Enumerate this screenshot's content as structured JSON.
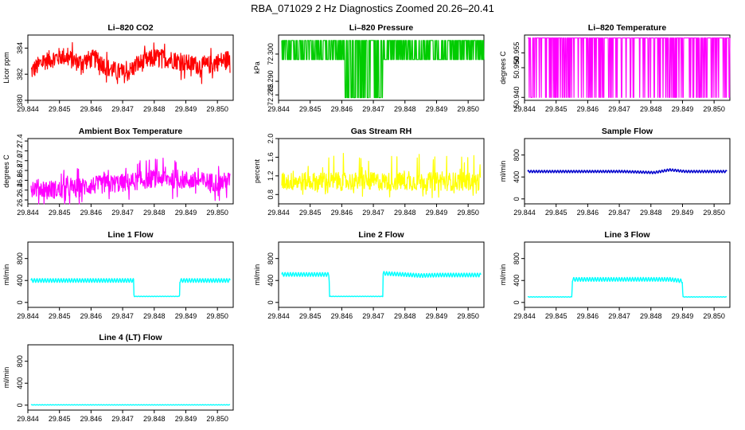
{
  "figure_title": "RBA_071029  2 Hz Diagnostics Zoomed 20.26–20.41",
  "x_ticks": [
    "29.844",
    "29.845",
    "29.846",
    "29.847",
    "29.848",
    "29.849",
    "29.850"
  ],
  "chart_data": [
    {
      "type": "line",
      "title": "Li–820 CO2",
      "ylabel": "Licor ppm",
      "color": "#ff0000",
      "xlim": [
        29.844,
        29.8505
      ],
      "ylim": [
        380,
        385
      ],
      "yticks": [
        "380",
        "382",
        "384"
      ],
      "ytick_values": [
        380,
        382,
        384
      ],
      "series": [
        {
          "name": "CO2",
          "x": [
            29.8441,
            29.8445,
            29.8451,
            29.8456,
            29.8461,
            29.8466,
            29.8471,
            29.8475,
            29.8481,
            29.8486,
            29.8491,
            29.8496,
            29.8501,
            29.8504
          ],
          "y": [
            382.2,
            383.0,
            383.4,
            382.9,
            383.2,
            382.4,
            382.0,
            382.8,
            383.3,
            383.1,
            382.8,
            382.6,
            383.0,
            383.2
          ]
        }
      ]
    },
    {
      "type": "line",
      "title": "Li–820 Pressure",
      "ylabel": "kPa",
      "color": "#00cc00",
      "xlim": [
        29.844,
        29.8505
      ],
      "ylim": [
        72.283,
        72.307
      ],
      "yticks": [
        "72.285",
        "72.290",
        "72.300"
      ],
      "ytick_values": [
        72.285,
        72.29,
        72.3
      ],
      "series": [
        {
          "name": "Pressure",
          "x": [
            29.8441,
            29.8461,
            29.8466,
            29.8473,
            29.8501,
            29.8505
          ],
          "y": [
            72.298,
            72.298,
            72.292,
            72.292,
            72.298,
            72.29
          ]
        }
      ]
    },
    {
      "type": "line",
      "title": "Li–820 Temperature",
      "ylabel": "degrees C",
      "color": "#ff00ff",
      "xlim": [
        29.844,
        29.8505
      ],
      "ylim": [
        50.939,
        50.961
      ],
      "yticks": [
        "50.940",
        "50.950",
        "50.955"
      ],
      "ytick_values": [
        50.94,
        50.95,
        50.955
      ],
      "series": [
        {
          "name": "Temperature",
          "x": [
            29.8441,
            29.8505
          ],
          "y": [
            50.96,
            50.96
          ]
        }
      ]
    },
    {
      "type": "line",
      "title": "Ambient Box Temperature",
      "ylabel": "degrees C",
      "color": "#ff00ff",
      "xlim": [
        29.844,
        29.8505
      ],
      "ylim": [
        26.12,
        27.45
      ],
      "yticks": [
        "26.2",
        "26.4",
        "26.6",
        "26.8",
        "27.0",
        "27.2",
        "27.4"
      ],
      "ytick_values": [
        26.2,
        26.4,
        26.6,
        26.8,
        27.0,
        27.2,
        27.4
      ],
      "series": [
        {
          "name": "Box Temp",
          "x": [
            29.8441,
            29.8451,
            29.8461,
            29.8471,
            29.8481,
            29.8491,
            29.8501,
            29.8504
          ],
          "y": [
            26.45,
            26.4,
            26.5,
            26.55,
            26.65,
            26.6,
            26.55,
            26.6
          ]
        }
      ]
    },
    {
      "type": "line",
      "title": "Gas Stream RH",
      "ylabel": "percent",
      "color": "#ffff00",
      "xlim": [
        29.844,
        29.8505
      ],
      "ylim": [
        0.6,
        2.0
      ],
      "yticks": [
        "0.8",
        "1.2",
        "1.6",
        "2.0"
      ],
      "ytick_values": [
        0.8,
        1.2,
        1.6,
        2.0
      ],
      "series": [
        {
          "name": "RH",
          "x": [
            29.8441,
            29.8461,
            29.8481,
            29.8504
          ],
          "y": [
            1.0,
            1.0,
            1.0,
            1.0
          ]
        }
      ]
    },
    {
      "type": "line",
      "title": "Sample Flow",
      "ylabel": "ml/min",
      "color": "#0000cc",
      "xlim": [
        29.844,
        29.8505
      ],
      "ylim": [
        -90,
        1100
      ],
      "yticks": [
        "0",
        "400",
        "800"
      ],
      "ytick_values": [
        0,
        400,
        800
      ],
      "series": [
        {
          "name": "Sample Flow",
          "x": [
            29.8441,
            29.8471,
            29.8481,
            29.8486,
            29.8491,
            29.8504
          ],
          "y": [
            500,
            500,
            480,
            530,
            500,
            500
          ]
        }
      ]
    },
    {
      "type": "line",
      "title": "Line 1 Flow",
      "ylabel": "ml/min",
      "color": "#00ffff",
      "xlim": [
        29.844,
        29.8505
      ],
      "ylim": [
        -90,
        1100
      ],
      "yticks": [
        "0",
        "400",
        "800"
      ],
      "ytick_values": [
        0,
        400,
        800
      ],
      "series": [
        {
          "name": "Line 1",
          "x": [
            29.8441,
            29.84735,
            29.84736,
            29.8488,
            29.84881,
            29.8504
          ],
          "y": [
            400,
            400,
            110,
            110,
            400,
            400
          ]
        }
      ]
    },
    {
      "type": "line",
      "title": "Line 2 Flow",
      "ylabel": "ml/min",
      "color": "#00ffff",
      "xlim": [
        29.844,
        29.8505
      ],
      "ylim": [
        -90,
        1100
      ],
      "yticks": [
        "0",
        "400",
        "800"
      ],
      "ytick_values": [
        0,
        400,
        800
      ],
      "series": [
        {
          "name": "Line 2",
          "x": [
            29.8441,
            29.8456,
            29.84561,
            29.8473,
            29.84731,
            29.8485,
            29.8491,
            29.8504
          ],
          "y": [
            510,
            510,
            110,
            110,
            530,
            490,
            500,
            500
          ]
        }
      ]
    },
    {
      "type": "line",
      "title": "Line 3 Flow",
      "ylabel": "ml/min",
      "color": "#00ffff",
      "xlim": [
        29.844,
        29.8505
      ],
      "ylim": [
        -90,
        1100
      ],
      "yticks": [
        "0",
        "400",
        "800"
      ],
      "ytick_values": [
        0,
        400,
        800
      ],
      "series": [
        {
          "name": "Line 3",
          "x": [
            29.8441,
            29.8455,
            29.84551,
            29.8486,
            29.849,
            29.84901,
            29.8504
          ],
          "y": [
            100,
            100,
            420,
            420,
            390,
            100,
            100
          ]
        }
      ]
    },
    {
      "type": "line",
      "title": "Line 4 (LT) Flow",
      "ylabel": "ml/min",
      "color": "#00ffff",
      "xlim": [
        29.844,
        29.8505
      ],
      "ylim": [
        -90,
        1100
      ],
      "yticks": [
        "0",
        "400",
        "800"
      ],
      "ytick_values": [
        0,
        400,
        800
      ],
      "series": [
        {
          "name": "Line 4",
          "x": [
            29.8441,
            29.8504
          ],
          "y": [
            5,
            5
          ]
        }
      ]
    }
  ]
}
